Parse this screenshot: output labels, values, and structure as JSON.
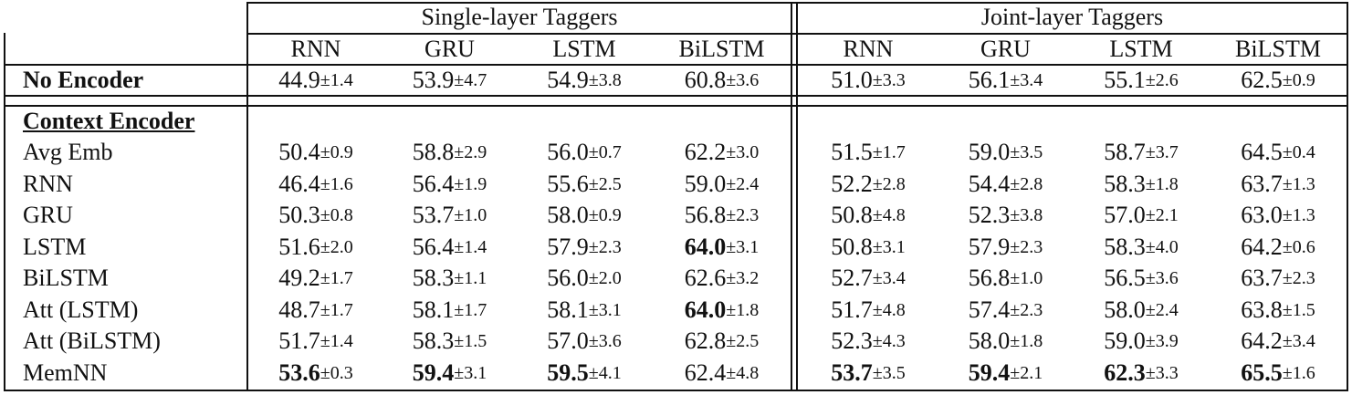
{
  "header": {
    "groups": [
      "Single-layer Taggers",
      "Joint-layer Taggers"
    ],
    "columns": [
      "RNN",
      "GRU",
      "LSTM",
      "BiLSTM",
      "RNN",
      "GRU",
      "LSTM",
      "BiLSTM"
    ]
  },
  "no_encoder": {
    "label": "No Encoder",
    "cells": [
      {
        "mean": "44.9",
        "std": "±1.4",
        "bold": false
      },
      {
        "mean": "53.9",
        "std": "±4.7",
        "bold": false
      },
      {
        "mean": "54.9",
        "std": "±3.8",
        "bold": false
      },
      {
        "mean": "60.8",
        "std": "±3.6",
        "bold": false
      },
      {
        "mean": "51.0",
        "std": "±3.3",
        "bold": false
      },
      {
        "mean": "56.1",
        "std": "±3.4",
        "bold": false
      },
      {
        "mean": "55.1",
        "std": "±2.6",
        "bold": false
      },
      {
        "mean": "62.5",
        "std": "±0.9",
        "bold": false
      }
    ]
  },
  "context_encoder": {
    "label": "Context Encoder",
    "rows": [
      {
        "label": "Avg Emb",
        "cells": [
          {
            "mean": "50.4",
            "std": "±0.9",
            "bold": false
          },
          {
            "mean": "58.8",
            "std": "±2.9",
            "bold": false
          },
          {
            "mean": "56.0",
            "std": "±0.7",
            "bold": false
          },
          {
            "mean": "62.2",
            "std": "±3.0",
            "bold": false
          },
          {
            "mean": "51.5",
            "std": "±1.7",
            "bold": false
          },
          {
            "mean": "59.0",
            "std": "±3.5",
            "bold": false
          },
          {
            "mean": "58.7",
            "std": "±3.7",
            "bold": false
          },
          {
            "mean": "64.5",
            "std": "±0.4",
            "bold": false
          }
        ]
      },
      {
        "label": "RNN",
        "cells": [
          {
            "mean": "46.4",
            "std": "±1.6",
            "bold": false
          },
          {
            "mean": "56.4",
            "std": "±1.9",
            "bold": false
          },
          {
            "mean": "55.6",
            "std": "±2.5",
            "bold": false
          },
          {
            "mean": "59.0",
            "std": "±2.4",
            "bold": false
          },
          {
            "mean": "52.2",
            "std": "±2.8",
            "bold": false
          },
          {
            "mean": "54.4",
            "std": "±2.8",
            "bold": false
          },
          {
            "mean": "58.3",
            "std": "±1.8",
            "bold": false
          },
          {
            "mean": "63.7",
            "std": "±1.3",
            "bold": false
          }
        ]
      },
      {
        "label": "GRU",
        "cells": [
          {
            "mean": "50.3",
            "std": "±0.8",
            "bold": false
          },
          {
            "mean": "53.7",
            "std": "±1.0",
            "bold": false
          },
          {
            "mean": "58.0",
            "std": "±0.9",
            "bold": false
          },
          {
            "mean": "56.8",
            "std": "±2.3",
            "bold": false
          },
          {
            "mean": "50.8",
            "std": "±4.8",
            "bold": false
          },
          {
            "mean": "52.3",
            "std": "±3.8",
            "bold": false
          },
          {
            "mean": "57.0",
            "std": "±2.1",
            "bold": false
          },
          {
            "mean": "63.0",
            "std": "±1.3",
            "bold": false
          }
        ]
      },
      {
        "label": "LSTM",
        "cells": [
          {
            "mean": "51.6",
            "std": "±2.0",
            "bold": false
          },
          {
            "mean": "56.4",
            "std": "±1.4",
            "bold": false
          },
          {
            "mean": "57.9",
            "std": "±2.3",
            "bold": false
          },
          {
            "mean": "64.0",
            "std": "±3.1",
            "bold": true
          },
          {
            "mean": "50.8",
            "std": "±3.1",
            "bold": false
          },
          {
            "mean": "57.9",
            "std": "±2.3",
            "bold": false
          },
          {
            "mean": "58.3",
            "std": "±4.0",
            "bold": false
          },
          {
            "mean": "64.2",
            "std": "±0.6",
            "bold": false
          }
        ]
      },
      {
        "label": "BiLSTM",
        "cells": [
          {
            "mean": "49.2",
            "std": "±1.7",
            "bold": false
          },
          {
            "mean": "58.3",
            "std": "±1.1",
            "bold": false
          },
          {
            "mean": "56.0",
            "std": "±2.0",
            "bold": false
          },
          {
            "mean": "62.6",
            "std": "±3.2",
            "bold": false
          },
          {
            "mean": "52.7",
            "std": "±3.4",
            "bold": false
          },
          {
            "mean": "56.8",
            "std": "±1.0",
            "bold": false
          },
          {
            "mean": "56.5",
            "std": "±3.6",
            "bold": false
          },
          {
            "mean": "63.7",
            "std": "±2.3",
            "bold": false
          }
        ]
      },
      {
        "label": "Att (LSTM)",
        "cells": [
          {
            "mean": "48.7",
            "std": "±1.7",
            "bold": false
          },
          {
            "mean": "58.1",
            "std": "±1.7",
            "bold": false
          },
          {
            "mean": "58.1",
            "std": "±3.1",
            "bold": false
          },
          {
            "mean": "64.0",
            "std": "±1.8",
            "bold": true
          },
          {
            "mean": "51.7",
            "std": "±4.8",
            "bold": false
          },
          {
            "mean": "57.4",
            "std": "±2.3",
            "bold": false
          },
          {
            "mean": "58.0",
            "std": "±2.4",
            "bold": false
          },
          {
            "mean": "63.8",
            "std": "±1.5",
            "bold": false
          }
        ]
      },
      {
        "label": "Att (BiLSTM)",
        "cells": [
          {
            "mean": "51.7",
            "std": "±1.4",
            "bold": false
          },
          {
            "mean": "58.3",
            "std": "±1.5",
            "bold": false
          },
          {
            "mean": "57.0",
            "std": "±3.6",
            "bold": false
          },
          {
            "mean": "62.8",
            "std": "±2.5",
            "bold": false
          },
          {
            "mean": "52.3",
            "std": "±4.3",
            "bold": false
          },
          {
            "mean": "58.0",
            "std": "±1.8",
            "bold": false
          },
          {
            "mean": "59.0",
            "std": "±3.9",
            "bold": false
          },
          {
            "mean": "64.2",
            "std": "±3.4",
            "bold": false
          }
        ]
      },
      {
        "label": "MemNN",
        "cells": [
          {
            "mean": "53.6",
            "std": "±0.3",
            "bold": true
          },
          {
            "mean": "59.4",
            "std": "±3.1",
            "bold": true
          },
          {
            "mean": "59.5",
            "std": "±4.1",
            "bold": true
          },
          {
            "mean": "62.4",
            "std": "±4.8",
            "bold": false
          },
          {
            "mean": "53.7",
            "std": "±3.5",
            "bold": true
          },
          {
            "mean": "59.4",
            "std": "±2.1",
            "bold": true
          },
          {
            "mean": "62.3",
            "std": "±3.3",
            "bold": true
          },
          {
            "mean": "65.5",
            "std": "±1.6",
            "bold": true
          }
        ]
      }
    ]
  }
}
